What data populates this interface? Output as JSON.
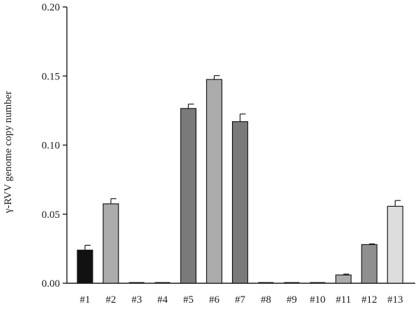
{
  "chart_data": {
    "type": "bar",
    "title": "",
    "xlabel": "",
    "ylabel": "γ-RVV genome copy number",
    "ylim": [
      0,
      0.2
    ],
    "yticks": [
      0.0,
      0.05,
      0.1,
      0.15,
      0.2
    ],
    "ytick_labels": [
      "0.00",
      "0.05",
      "0.10",
      "0.15",
      "0.20"
    ],
    "grid": false,
    "legend": "none",
    "categories": [
      "#1",
      "#2",
      "#3",
      "#4",
      "#5",
      "#6",
      "#7",
      "#8",
      "#9",
      "#10",
      "#11",
      "#12",
      "#13"
    ],
    "values": [
      0.024,
      0.0575,
      0,
      0,
      0.1265,
      0.1475,
      0.117,
      0,
      0,
      0,
      0.006,
      0.028,
      0.0557
    ],
    "errors": [
      0.0035,
      0.0037,
      0,
      0,
      0.0032,
      0.0028,
      0.0055,
      0,
      0,
      0,
      0.0006,
      0.0005,
      0.0042
    ],
    "bar_colors": [
      "#111111",
      "#ababab",
      "#888888",
      "#888888",
      "#7a7a7a",
      "#ababab",
      "#7a7a7a",
      "#888888",
      "#888888",
      "#888888",
      "#ababab",
      "#8f8f8f",
      "#dcdcdc"
    ]
  }
}
